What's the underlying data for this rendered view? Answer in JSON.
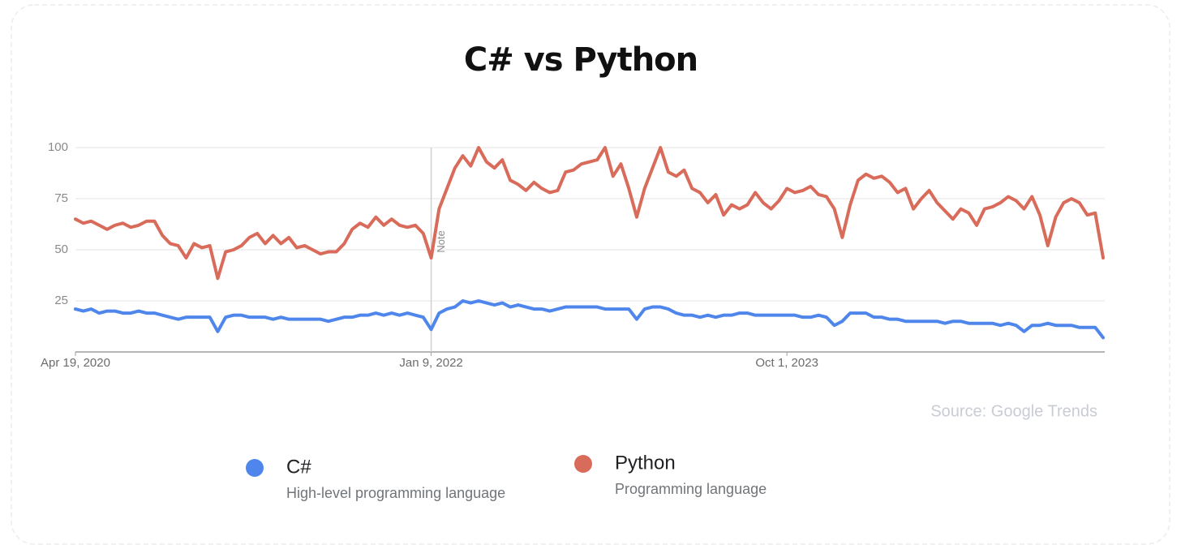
{
  "chart_data": {
    "type": "line",
    "title": "C# vs Python",
    "source": "Source: Google Trends",
    "x": [
      "2020-04-19",
      "2020-05-03",
      "2020-05-17",
      "2020-05-31",
      "2020-06-14",
      "2020-06-28",
      "2020-07-12",
      "2020-07-26",
      "2020-08-09",
      "2020-08-23",
      "2020-09-06",
      "2020-09-20",
      "2020-10-04",
      "2020-10-18",
      "2020-11-01",
      "2020-11-15",
      "2020-11-29",
      "2020-12-13",
      "2020-12-27",
      "2021-01-10",
      "2021-01-24",
      "2021-02-07",
      "2021-02-21",
      "2021-03-07",
      "2021-03-21",
      "2021-04-04",
      "2021-04-18",
      "2021-05-02",
      "2021-05-16",
      "2021-05-30",
      "2021-06-13",
      "2021-06-27",
      "2021-07-11",
      "2021-07-25",
      "2021-08-08",
      "2021-08-22",
      "2021-09-05",
      "2021-09-19",
      "2021-10-03",
      "2021-10-17",
      "2021-10-31",
      "2021-11-14",
      "2021-11-28",
      "2021-12-12",
      "2021-12-26",
      "2022-01-09",
      "2022-01-23",
      "2022-02-06",
      "2022-02-20",
      "2022-03-06",
      "2022-03-20",
      "2022-04-03",
      "2022-04-17",
      "2022-05-01",
      "2022-05-15",
      "2022-05-29",
      "2022-06-12",
      "2022-06-26",
      "2022-07-10",
      "2022-07-24",
      "2022-08-07",
      "2022-08-21",
      "2022-09-04",
      "2022-09-18",
      "2022-10-02",
      "2022-10-16",
      "2022-10-30",
      "2022-11-13",
      "2022-11-27",
      "2022-12-11",
      "2022-12-25",
      "2023-01-08",
      "2023-01-22",
      "2023-02-05",
      "2023-02-19",
      "2023-03-05",
      "2023-03-19",
      "2023-04-02",
      "2023-04-16",
      "2023-04-30",
      "2023-05-14",
      "2023-05-28",
      "2023-06-11",
      "2023-06-25",
      "2023-07-09",
      "2023-07-23",
      "2023-08-06",
      "2023-08-20",
      "2023-09-03",
      "2023-09-17",
      "2023-10-01",
      "2023-10-15",
      "2023-10-29",
      "2023-11-12",
      "2023-11-26",
      "2023-12-10",
      "2023-12-24",
      "2024-01-07",
      "2024-01-21",
      "2024-02-04",
      "2024-02-18",
      "2024-03-03",
      "2024-03-17",
      "2024-03-31",
      "2024-04-14",
      "2024-04-28",
      "2024-05-12",
      "2024-05-26",
      "2024-06-09",
      "2024-06-23",
      "2024-07-07",
      "2024-07-21",
      "2024-08-04",
      "2024-08-18",
      "2024-09-01",
      "2024-09-15",
      "2024-09-29",
      "2024-10-13",
      "2024-10-27",
      "2024-11-10",
      "2024-11-24",
      "2024-12-08",
      "2024-12-22",
      "2025-01-05",
      "2025-01-19",
      "2025-02-02",
      "2025-02-16",
      "2025-03-02",
      "2025-03-16",
      "2025-03-30",
      "2025-04-13"
    ],
    "series": [
      {
        "name": "C#",
        "description": "High-level programming language",
        "color": "#4f86ec",
        "values": [
          21,
          20,
          21,
          19,
          20,
          20,
          19,
          19,
          20,
          19,
          19,
          18,
          17,
          16,
          17,
          17,
          17,
          17,
          10,
          17,
          18,
          18,
          17,
          17,
          17,
          16,
          17,
          16,
          16,
          16,
          16,
          16,
          15,
          16,
          17,
          17,
          18,
          18,
          19,
          18,
          19,
          18,
          19,
          18,
          17,
          11,
          19,
          21,
          22,
          25,
          24,
          25,
          24,
          23,
          24,
          22,
          23,
          22,
          21,
          21,
          20,
          21,
          22,
          22,
          22,
          22,
          22,
          21,
          21,
          21,
          21,
          16,
          21,
          22,
          22,
          21,
          19,
          18,
          18,
          17,
          18,
          17,
          18,
          18,
          19,
          19,
          18,
          18,
          18,
          18,
          18,
          18,
          17,
          17,
          18,
          17,
          13,
          15,
          19,
          19,
          19,
          17,
          17,
          16,
          16,
          15,
          15,
          15,
          15,
          15,
          14,
          15,
          15,
          14,
          14,
          14,
          14,
          13,
          14,
          13,
          10,
          13,
          13,
          14,
          13,
          13,
          13,
          12,
          12,
          12,
          7
        ]
      },
      {
        "name": "Python",
        "description": "Programming language",
        "color": "#d96b5b",
        "values": [
          65,
          63,
          64,
          62,
          60,
          62,
          63,
          61,
          62,
          64,
          64,
          57,
          53,
          52,
          46,
          53,
          51,
          52,
          36,
          49,
          50,
          52,
          56,
          58,
          53,
          57,
          53,
          56,
          51,
          52,
          50,
          48,
          49,
          49,
          53,
          60,
          63,
          61,
          66,
          62,
          65,
          62,
          61,
          62,
          58,
          46,
          70,
          80,
          90,
          96,
          91,
          100,
          93,
          90,
          94,
          84,
          82,
          79,
          83,
          80,
          78,
          79,
          88,
          89,
          92,
          93,
          94,
          100,
          86,
          92,
          80,
          66,
          80,
          90,
          100,
          88,
          86,
          89,
          80,
          78,
          73,
          77,
          67,
          72,
          70,
          72,
          78,
          73,
          70,
          74,
          80,
          78,
          79,
          81,
          77,
          76,
          70,
          56,
          72,
          84,
          87,
          85,
          86,
          83,
          78,
          80,
          70,
          75,
          79,
          73,
          69,
          65,
          70,
          68,
          62,
          70,
          71,
          73,
          76,
          74,
          70,
          76,
          67,
          52,
          66,
          73,
          75,
          73,
          67,
          68,
          46
        ]
      }
    ],
    "xlim": [
      "2020-04-19",
      "2025-04-13"
    ],
    "xticks": [
      {
        "value": "2020-04-19",
        "label": "Apr 19, 2020"
      },
      {
        "value": "2022-01-09",
        "label": "Jan 9, 2022"
      },
      {
        "value": "2023-10-01",
        "label": "Oct 1, 2023"
      }
    ],
    "ylim": [
      0,
      100
    ],
    "yticks": [
      25,
      50,
      75,
      100
    ],
    "grid": true,
    "annotations": [
      {
        "x": "2022-01-09",
        "text": "Note"
      }
    ]
  }
}
